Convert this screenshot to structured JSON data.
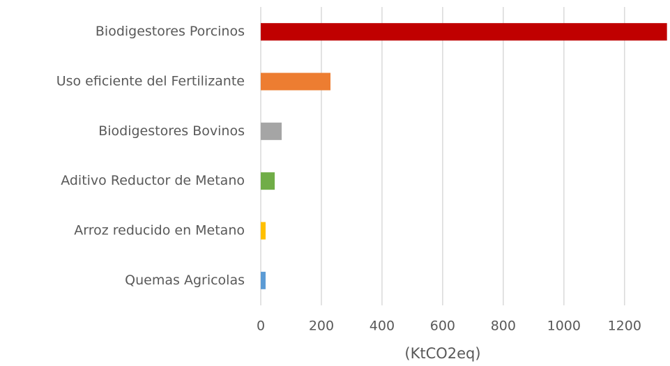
{
  "chart_data": {
    "type": "barh",
    "categories": [
      "Biodigestores Porcinos",
      "Uso eficiente del Fertilizante",
      "Biodigestores Bovinos",
      "Aditivo Reductor de Metano",
      "Arroz reducido en Metano",
      "Quemas Agricolas"
    ],
    "values": [
      1340,
      230,
      69,
      46,
      16,
      16
    ],
    "colors": [
      "#c00000",
      "#ed7d31",
      "#a5a5a5",
      "#70ad47",
      "#ffc000",
      "#5b9bd5"
    ],
    "xlabel": "(KtCO2eq)",
    "xlim": [
      0,
      1350
    ],
    "xticks": [
      0,
      200,
      400,
      600,
      800,
      1000,
      1200
    ],
    "grid": true
  }
}
